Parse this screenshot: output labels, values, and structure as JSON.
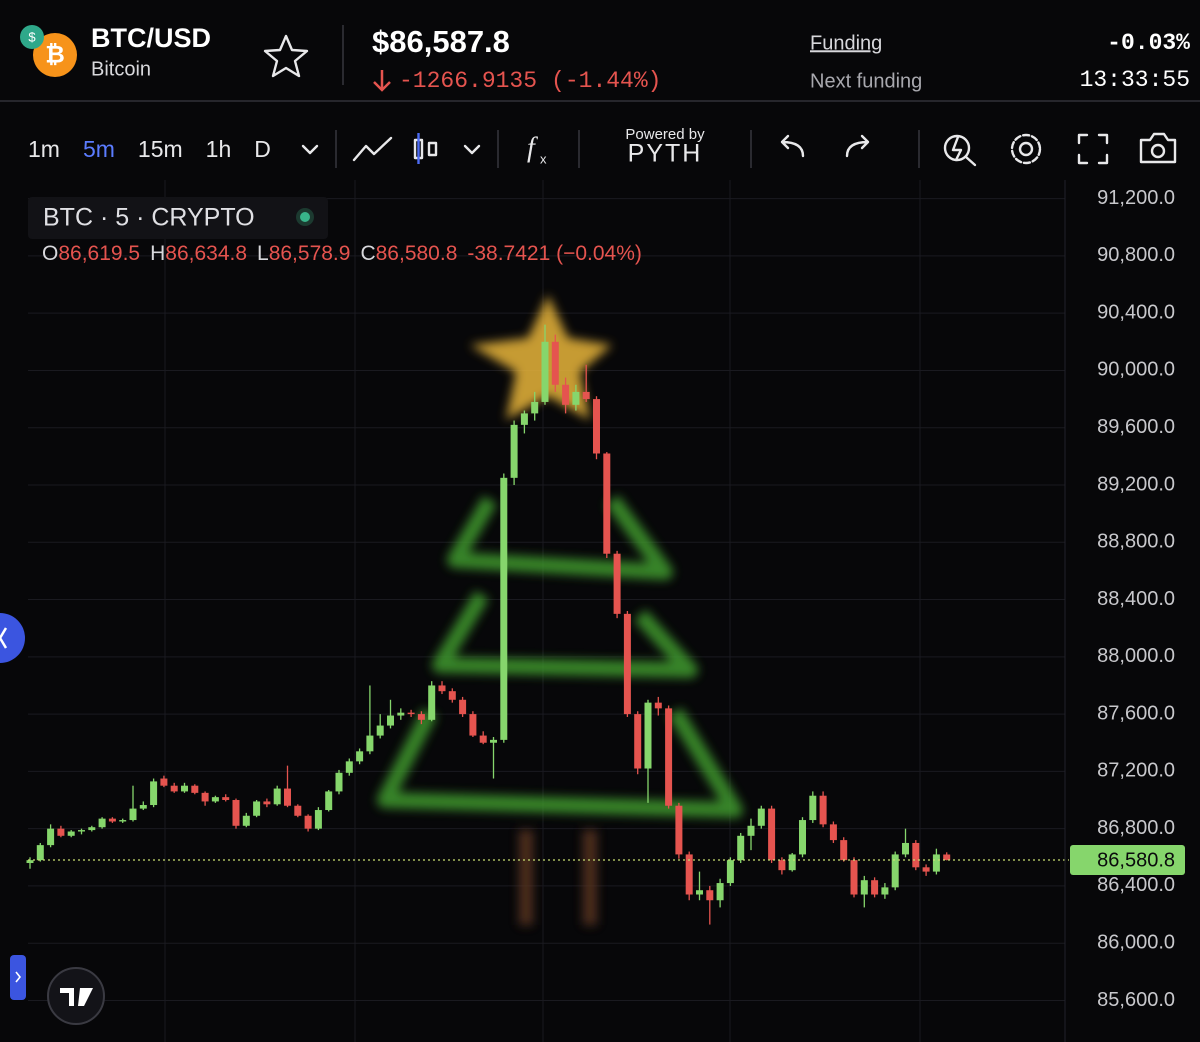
{
  "header": {
    "symbol": "BTC/USD",
    "name": "Bitcoin",
    "price": "$86,587.8",
    "change": "-1266.9135",
    "change_percent": "(-1.44%)",
    "funding_label": "Funding",
    "next_funding_label": "Next funding",
    "funding_rate": "-0.03%",
    "countdown": "13:33:55"
  },
  "toolbar": {
    "intervals": [
      "1m",
      "5m",
      "15m",
      "1h",
      "D"
    ],
    "active_interval": "5m",
    "powered_by": "Powered by",
    "provider": "PYTH"
  },
  "legend": {
    "title": "BTC · 5 · CRYPTO",
    "ohlc": [
      {
        "key": "O",
        "value": "86,619.5"
      },
      {
        "key": "H",
        "value": "86,634.8"
      },
      {
        "key": "L",
        "value": "86,578.9"
      },
      {
        "key": "C",
        "value": "86,580.8"
      }
    ],
    "change": "-38.7421 (−0.04%)"
  },
  "chart_data": {
    "type": "candlestick",
    "up_color": "#86d66c",
    "down_color": "#e5544f",
    "grid": true,
    "open": [
      86560,
      86580,
      86685,
      86800,
      86750,
      86780,
      86790,
      86810,
      86870,
      86850,
      86860,
      86940,
      86965,
      87150,
      87100,
      87060,
      87100,
      87050,
      86990,
      87020,
      87000,
      86820,
      86890,
      86990,
      86970,
      87080,
      86960,
      86890,
      86800,
      86930,
      87060,
      87190,
      87270,
      87340,
      87450,
      87520,
      87590,
      87610,
      87600,
      87560,
      87800,
      87760,
      87700,
      87600,
      87450,
      87400,
      87420,
      89250,
      89620,
      89700,
      89780,
      90200,
      89900,
      89760,
      89850,
      89800,
      89420,
      88720,
      88300,
      87600,
      87220,
      87680,
      87640,
      86960,
      86620,
      86340,
      86370,
      86300,
      86420,
      86580,
      86750,
      86820,
      86940,
      86580,
      86510,
      86620,
      86860,
      87030,
      86830,
      86720,
      86580,
      86340,
      86440,
      86340,
      86390,
      86620,
      86700,
      86530,
      86500,
      86619.5
    ],
    "high": [
      86600,
      86700,
      86830,
      86820,
      86790,
      86800,
      86820,
      86880,
      86880,
      86870,
      87100,
      86990,
      87150,
      87170,
      87120,
      87120,
      87110,
      87060,
      87030,
      87040,
      87010,
      86910,
      87000,
      87010,
      87100,
      87240,
      86970,
      86900,
      86950,
      87070,
      87210,
      87290,
      87360,
      87800,
      87600,
      87700,
      87640,
      87630,
      87620,
      87830,
      87830,
      87780,
      87720,
      87620,
      87480,
      87440,
      89280,
      89650,
      89720,
      89850,
      90320,
      90250,
      89950,
      89900,
      90040,
      89820,
      89430,
      88740,
      88320,
      87620,
      87700,
      87720,
      87660,
      86980,
      86640,
      86500,
      86400,
      86450,
      86600,
      86770,
      86870,
      86960,
      86960,
      86600,
      86630,
      86880,
      87060,
      87060,
      86850,
      86740,
      86600,
      86470,
      86460,
      86420,
      86640,
      86800,
      86720,
      86550,
      86660,
      86634.8
    ],
    "low": [
      86520,
      86570,
      86670,
      86740,
      86740,
      86760,
      86780,
      86800,
      86840,
      86840,
      86850,
      86930,
      86950,
      87090,
      87050,
      87050,
      87040,
      86960,
      86980,
      86990,
      86800,
      86810,
      86880,
      86950,
      86960,
      86950,
      86880,
      86780,
      86790,
      86920,
      87040,
      87170,
      87250,
      87320,
      87430,
      87500,
      87560,
      87580,
      87530,
      87550,
      87740,
      87680,
      87580,
      87440,
      87390,
      87150,
      87400,
      89200,
      89560,
      89650,
      89760,
      89850,
      89700,
      89720,
      89780,
      89380,
      88690,
      88270,
      87580,
      87180,
      86980,
      87590,
      86940,
      86590,
      86300,
      86300,
      86130,
      86250,
      86400,
      86560,
      86650,
      86800,
      86560,
      86480,
      86500,
      86600,
      86840,
      86810,
      86700,
      86570,
      86320,
      86250,
      86320,
      86310,
      86370,
      86600,
      86510,
      86470,
      86480,
      86578.9
    ],
    "close": [
      86580,
      86685,
      86800,
      86750,
      86780,
      86790,
      86810,
      86870,
      86850,
      86860,
      86940,
      86965,
      87130,
      87100,
      87060,
      87100,
      87050,
      86990,
      87020,
      87000,
      86820,
      86890,
      86990,
      86970,
      87080,
      86960,
      86890,
      86800,
      86930,
      87060,
      87190,
      87270,
      87340,
      87450,
      87520,
      87590,
      87610,
      87600,
      87560,
      87800,
      87760,
      87700,
      87600,
      87450,
      87400,
      87420,
      89250,
      89620,
      89700,
      89780,
      90200,
      89900,
      89760,
      89850,
      89800,
      89420,
      88720,
      88300,
      87600,
      87220,
      87680,
      87640,
      86960,
      86620,
      86340,
      86370,
      86300,
      86420,
      86580,
      86750,
      86820,
      86940,
      86580,
      86510,
      86620,
      86860,
      87030,
      86830,
      86720,
      86580,
      86340,
      86440,
      86340,
      86390,
      86620,
      86700,
      86530,
      86500,
      86620,
      86580.8
    ],
    "ylim": [
      85310,
      91330
    ],
    "yticks": [
      {
        "value": 91200,
        "label": "91,200.0"
      },
      {
        "value": 90800,
        "label": "90,800.0"
      },
      {
        "value": 90400,
        "label": "90,400.0"
      },
      {
        "value": 90000,
        "label": "90,000.0"
      },
      {
        "value": 89600,
        "label": "89,600.0"
      },
      {
        "value": 89200,
        "label": "89,200.0"
      },
      {
        "value": 88800,
        "label": "88,800.0"
      },
      {
        "value": 88400,
        "label": "88,400.0"
      },
      {
        "value": 88000,
        "label": "88,000.0"
      },
      {
        "value": 87600,
        "label": "87,600.0"
      },
      {
        "value": 87200,
        "label": "87,200.0"
      },
      {
        "value": 86800,
        "label": "86,800.0"
      },
      {
        "value": 86400,
        "label": "86,400.0"
      },
      {
        "value": 86000,
        "label": "86,000.0"
      },
      {
        "value": 85600,
        "label": "85,600.0"
      }
    ],
    "last_price": {
      "value": 86580.8,
      "label": "86,580.8"
    }
  }
}
